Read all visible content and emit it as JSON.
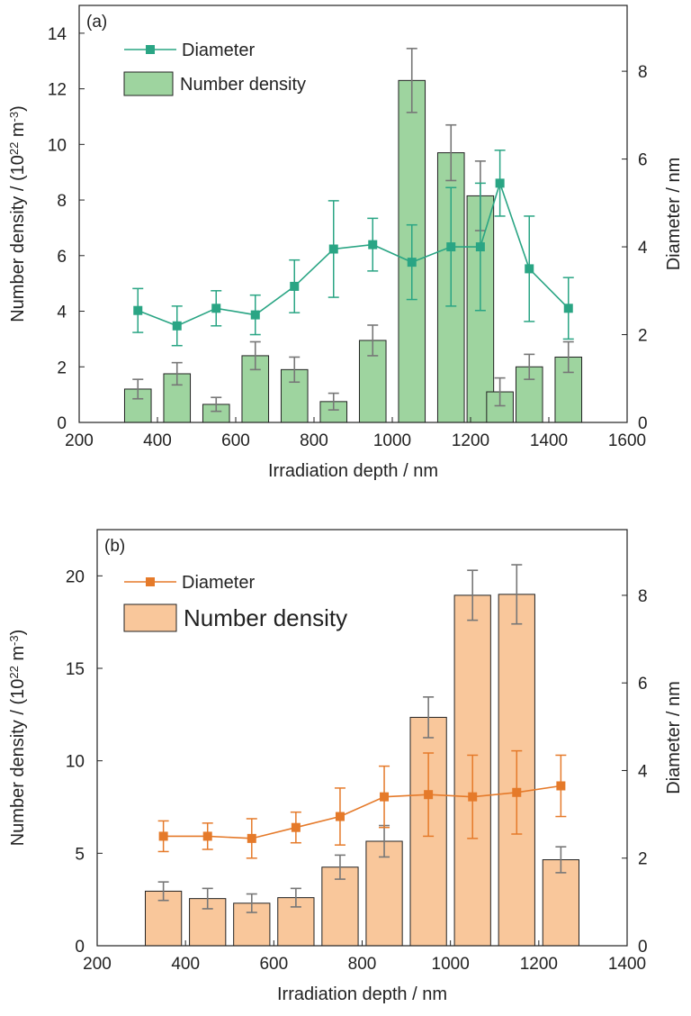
{
  "chart_data": [
    {
      "type": "bar",
      "panel_label": "(a)",
      "xlabel": "Irradiation depth / nm",
      "ylabel_left": "Number density / (10^22 m^-3)",
      "ylabel_right": "Diameter / nm",
      "xlim": [
        200,
        1600
      ],
      "xticks": [
        200,
        400,
        600,
        800,
        1000,
        1200,
        1400,
        1600
      ],
      "ylim_left": [
        0,
        15
      ],
      "yticks_left": [
        0,
        2,
        4,
        6,
        8,
        10,
        12,
        14
      ],
      "ylim_right": [
        0,
        9.5
      ],
      "yticks_right": [
        0,
        2,
        4,
        6,
        8
      ],
      "legend_position": "top-left",
      "colors": {
        "bar_fill": "#9ed49f",
        "bar_stroke": "#222222",
        "line": "#2aa584",
        "error": "#777777"
      },
      "series": [
        {
          "name": "Number density",
          "kind": "bar",
          "axis": "left",
          "x": [
            350,
            450,
            550,
            650,
            750,
            850,
            950,
            1050,
            1150,
            1225,
            1275,
            1350,
            1450
          ],
          "values": [
            1.2,
            1.75,
            0.65,
            2.4,
            1.9,
            0.75,
            2.95,
            12.3,
            9.7,
            8.15,
            1.1,
            2.0,
            2.35
          ],
          "error": [
            0.35,
            0.4,
            0.25,
            0.5,
            0.45,
            0.3,
            0.55,
            1.15,
            1.0,
            1.25,
            0.5,
            0.45,
            0.55
          ],
          "bar_width": 68
        },
        {
          "name": "Diameter",
          "kind": "line",
          "axis": "right",
          "x": [
            350,
            450,
            550,
            650,
            750,
            850,
            950,
            1050,
            1150,
            1225,
            1275,
            1350,
            1450
          ],
          "values": [
            2.55,
            2.2,
            2.6,
            2.45,
            3.1,
            3.95,
            4.05,
            3.65,
            4.0,
            4.0,
            5.45,
            3.5,
            2.6
          ],
          "error": [
            0.5,
            0.45,
            0.4,
            0.45,
            0.6,
            1.1,
            0.6,
            0.85,
            1.35,
            1.45,
            0.75,
            1.2,
            0.7
          ]
        }
      ]
    },
    {
      "type": "bar",
      "panel_label": "(b)",
      "xlabel": "Irradiation depth / nm",
      "ylabel_left": "Number density / (10^22 m^-3)",
      "ylabel_right": "Diameter / nm",
      "xlim": [
        200,
        1400
      ],
      "xticks": [
        200,
        400,
        600,
        800,
        1000,
        1200,
        1400
      ],
      "ylim_left": [
        0,
        22.5
      ],
      "yticks_left": [
        0,
        5,
        10,
        15,
        20
      ],
      "ylim_right": [
        0,
        9.5
      ],
      "yticks_right": [
        0,
        2,
        4,
        6,
        8
      ],
      "legend_position": "top-left",
      "colors": {
        "bar_fill": "#f9c79b",
        "bar_stroke": "#222222",
        "line": "#e57a2a",
        "error": "#777777"
      },
      "series": [
        {
          "name": "Number density",
          "kind": "bar",
          "axis": "left",
          "x": [
            350,
            450,
            550,
            650,
            750,
            850,
            950,
            1050,
            1150,
            1250
          ],
          "values": [
            2.95,
            2.55,
            2.3,
            2.6,
            4.25,
            5.65,
            12.35,
            18.95,
            19.0,
            4.65
          ],
          "error": [
            0.5,
            0.55,
            0.5,
            0.5,
            0.65,
            0.85,
            1.1,
            1.35,
            1.6,
            0.7
          ],
          "bar_width": 82
        },
        {
          "name": "Diameter",
          "kind": "line",
          "axis": "right",
          "x": [
            350,
            450,
            550,
            650,
            750,
            850,
            950,
            1050,
            1150,
            1250
          ],
          "values": [
            2.5,
            2.5,
            2.45,
            2.7,
            2.95,
            3.4,
            3.45,
            3.4,
            3.5,
            3.65
          ],
          "error": [
            0.35,
            0.3,
            0.45,
            0.35,
            0.65,
            0.7,
            0.95,
            0.95,
            0.95,
            0.7
          ]
        }
      ]
    }
  ]
}
